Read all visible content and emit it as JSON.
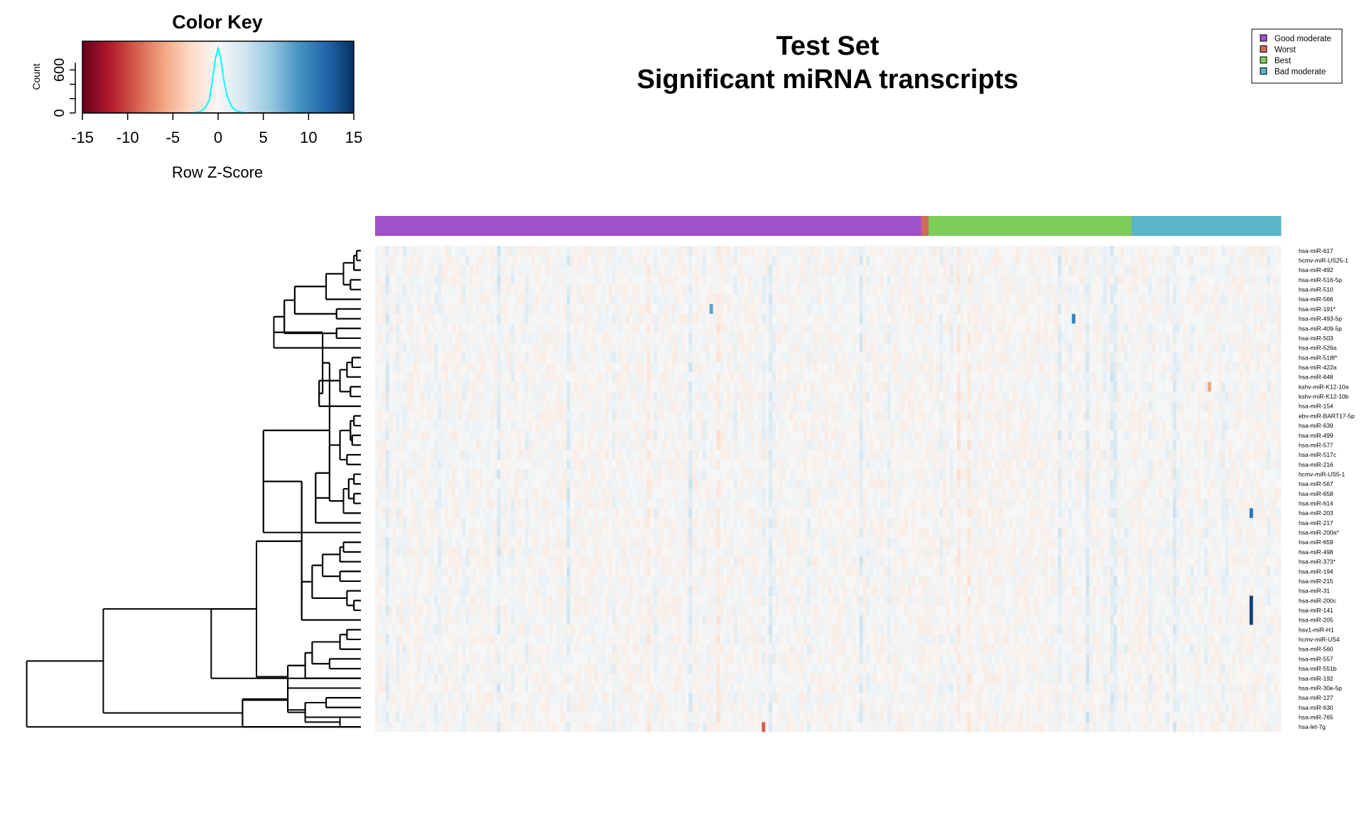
{
  "chart_data": {
    "type": "heatmap",
    "title": "Test Set",
    "subtitle": "Significant miRNA transcripts",
    "color_key": {
      "title": "Color Key",
      "xlabel": "Row Z-Score",
      "ylabel": "Count",
      "xlim": [
        -15,
        15
      ],
      "x_ticks": [
        "-15",
        "-10",
        "-5",
        "0",
        "5",
        "10",
        "15"
      ],
      "y_ticks": [
        "0",
        "600"
      ],
      "colors": [
        "#67001f",
        "#b2182b",
        "#d6604d",
        "#f4a582",
        "#fddbc7",
        "#f7f7f7",
        "#d1e5f0",
        "#92c5de",
        "#4393c3",
        "#2166ac",
        "#053061"
      ],
      "histogram_color": "#00ffff",
      "histogram": {
        "x": [
          -3,
          -2,
          -1.5,
          -1,
          -0.6,
          -0.3,
          0,
          0.3,
          0.6,
          1,
          1.5,
          2,
          3
        ],
        "y": [
          0,
          20,
          60,
          170,
          480,
          760,
          900,
          760,
          480,
          230,
          90,
          30,
          0
        ]
      }
    },
    "legend": {
      "placement": "top-right",
      "entries": [
        {
          "label": "Good moderate",
          "color": "#a050c8"
        },
        {
          "label": "Worst",
          "color": "#d06a5a"
        },
        {
          "label": "Best",
          "color": "#7ece5a"
        },
        {
          "label": "Bad moderate",
          "color": "#5ab6c8"
        }
      ]
    },
    "column_groups": [
      {
        "label": "Good moderate",
        "fraction": 0.603
      },
      {
        "label": "Worst",
        "fraction": 0.008
      },
      {
        "label": "Best",
        "fraction": 0.224
      },
      {
        "label": "Bad moderate",
        "fraction": 0.165
      }
    ],
    "n_columns": 260,
    "rows": [
      "hsa-miR-617",
      "hcmv-miR-US25-1",
      "hsa-miR-492",
      "hsa-miR-516-5p",
      "hsa-miR-510",
      "hsa-miR-566",
      "hsa-miR-191*",
      "hsa-miR-493-5p",
      "hsa-miR-409-5p",
      "hsa-miR-503",
      "hsa-miR-526a",
      "hsa-miR-518f*",
      "hsa-miR-422a",
      "hsa-miR-648",
      "kshv-miR-K12-10a",
      "kshv-miR-K12-10b",
      "hsa-miR-154",
      "ebv-miR-BART17-5p",
      "hsa-miR-639",
      "hsa-miR-499",
      "hsa-miR-577",
      "hsa-miR-517c",
      "hsa-miR-216",
      "hcmv-miR-US5-1",
      "hsa-miR-567",
      "hsa-miR-658",
      "hsa-miR-614",
      "hsa-miR-203",
      "hsa-miR-217",
      "hsa-miR-200a*",
      "hsa-miR-659",
      "hsa-miR-498",
      "hsa-miR-373*",
      "hsa-miR-194",
      "hsa-miR-215",
      "hsa-miR-31",
      "hsa-miR-200c",
      "hsa-miR-141",
      "hsa-miR-205",
      "hsv1-miR-H1",
      "hcmv-miR-US4",
      "hsa-miR-560",
      "hsa-miR-557",
      "hsa-miR-551b",
      "hsa-miR-192",
      "hsa-miR-30e-5p",
      "hsa-miR-127",
      "hsa-miR-630",
      "hsa-miR-765",
      "hsa-let-7g"
    ],
    "highlights": [
      {
        "row": "hsa-miR-200c",
        "column": 251,
        "z": 14
      },
      {
        "row": "hsa-miR-141",
        "column": 251,
        "z": 14
      },
      {
        "row": "hsa-miR-205",
        "column": 251,
        "z": 14
      },
      {
        "row": "hsa-miR-203",
        "column": 251,
        "z": 11
      },
      {
        "row": "hsa-miR-493-5p",
        "column": 200,
        "z": 10
      },
      {
        "row": "hsa-miR-191*",
        "column": 96,
        "z": 8
      },
      {
        "row": "hsa-let-7g",
        "column": 111,
        "z": -9
      },
      {
        "row": "kshv-miR-K12-10a",
        "column": 239,
        "z": -6
      }
    ],
    "dendrogram_side": "left"
  }
}
